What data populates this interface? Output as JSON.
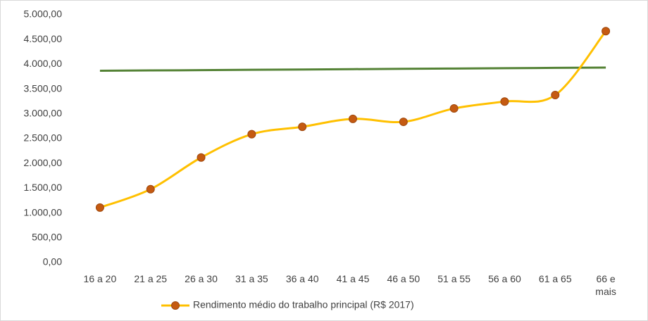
{
  "chart_data": {
    "type": "line",
    "categories": [
      "16 a 20",
      "21 a 25",
      "26 a 30",
      "31 a 35",
      "36 a 40",
      "41 a 45",
      "46 a 50",
      "51 a 55",
      "56 a 60",
      "61 a 65",
      "66 e mais"
    ],
    "series": [
      {
        "name": "Rendimento médio do trabalho principal (R$ 2017)",
        "color": "#ffc000",
        "marker_color": "#c55a11",
        "smooth": true,
        "values": [
          1110,
          1480,
          2120,
          2590,
          2740,
          2900,
          2840,
          3110,
          3250,
          3380,
          4670
        ]
      },
      {
        "color": "#548235",
        "smooth": false,
        "values": [
          3870,
          3877,
          3883,
          3890,
          3896,
          3903,
          3909,
          3916,
          3922,
          3929,
          3935
        ]
      }
    ],
    "ylim": [
      0,
      5000
    ],
    "yticks": [
      {
        "value": 0,
        "label": "0,00"
      },
      {
        "value": 500,
        "label": "500,00"
      },
      {
        "value": 1000,
        "label": "1.000,00"
      },
      {
        "value": 1500,
        "label": "1.500,00"
      },
      {
        "value": 2000,
        "label": "2.000,00"
      },
      {
        "value": 2500,
        "label": "2.500,00"
      },
      {
        "value": 3000,
        "label": "3.000,00"
      },
      {
        "value": 3500,
        "label": "3.500,00"
      },
      {
        "value": 4000,
        "label": "4.000,00"
      },
      {
        "value": 4500,
        "label": "4.500,00"
      },
      {
        "value": 5000,
        "label": "5.000,00"
      }
    ],
    "grid": false,
    "legend": "bottom"
  }
}
